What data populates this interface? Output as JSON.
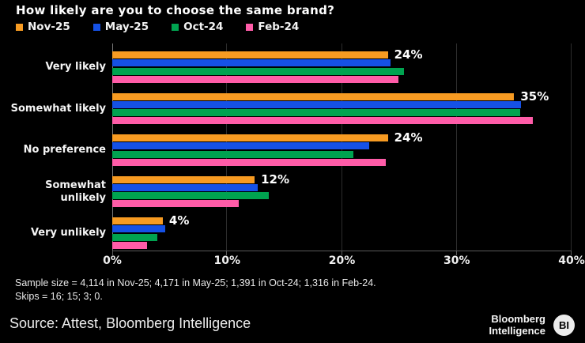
{
  "title": "How likely are you to choose the same brand?",
  "chart_data": {
    "type": "bar",
    "orientation": "horizontal",
    "title": "How likely are you to choose the same brand?",
    "categories": [
      "Very likely",
      "Somewhat likely",
      "No preference",
      "Somewhat unlikely",
      "Very unlikely"
    ],
    "series": [
      {
        "name": "Nov-25",
        "color": "#F79B22",
        "values": [
          24,
          35,
          24,
          12.4,
          4.4
        ]
      },
      {
        "name": "May-25",
        "color": "#1551E6",
        "values": [
          24.2,
          35.6,
          22.4,
          12.7,
          4.6
        ]
      },
      {
        "name": "Oct-24",
        "color": "#00A350",
        "values": [
          25.4,
          35.5,
          21.0,
          13.6,
          3.9
        ]
      },
      {
        "name": "Feb-24",
        "color": "#FF5CA8",
        "values": [
          24.9,
          36.6,
          23.8,
          11.0,
          3.0
        ]
      }
    ],
    "bar_labels": [
      "24%",
      "35%",
      "24%",
      "12%",
      "4%"
    ],
    "x_ticks": [
      "0%",
      "10%",
      "20%",
      "30%",
      "40%"
    ],
    "xlim": [
      0,
      40
    ],
    "xlabel": "",
    "ylabel": "",
    "grid": "vertical",
    "legend_position": "top-left",
    "label_series": "Nov-25"
  },
  "footnote": {
    "line1": "Sample size = 4,114 in Nov-25; 4,171 in May-25; 1,391 in Oct-24; 1,316 in Feb-24.",
    "line2": "Skips = 16; 15; 3; 0."
  },
  "footer": {
    "source": "Source: Attest, Bloomberg Intelligence",
    "brand_line1": "Bloomberg",
    "brand_line2": "Intelligence",
    "logo_badge": "BI"
  },
  "colors": {
    "background": "#000000",
    "gridline": "#2d2d2d",
    "axis": "#5a5a5a",
    "text": "#ffffff"
  }
}
